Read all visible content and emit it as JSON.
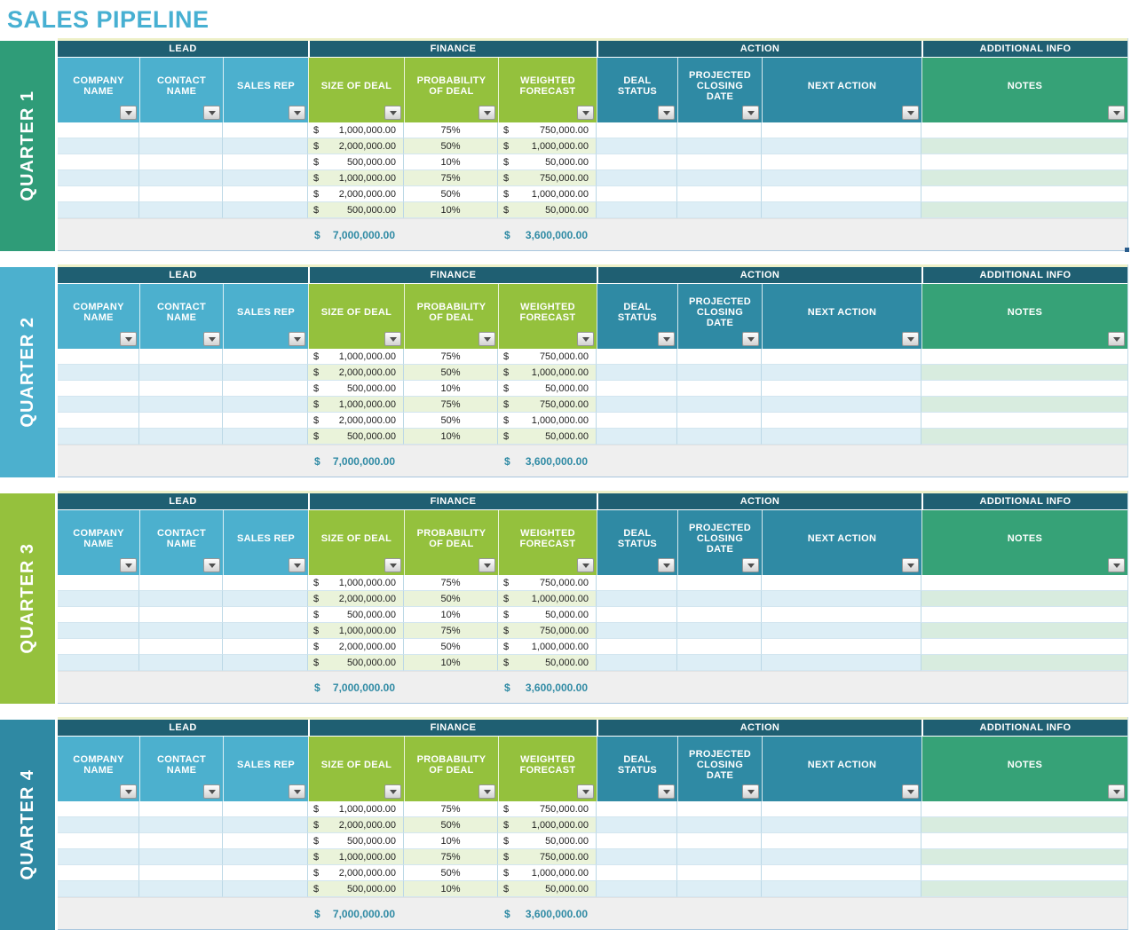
{
  "page_title": "SALES PIPELINE",
  "colors": {
    "title_text": "#47b0d2",
    "group_header_bg": "#1f5f72",
    "lead_header_bg": "#4cb0ce",
    "finance_header_bg": "#94c13d",
    "action_header_bg": "#2f8aa4",
    "notes_header_bg": "#36a277",
    "row_alt_blue": "#ddeef6",
    "row_alt_green": "#eaf3da",
    "row_alt_notes": "#d8ecdf",
    "total_row_bg": "#efefef",
    "total_text": "#2f8aa4",
    "table_top_accent": "#eef0c8",
    "data_text": "#1f1f1f",
    "quarter_sidebars": [
      "#2f9c78",
      "#4cb0ce",
      "#95c13d",
      "#2f89a3"
    ]
  },
  "quarters": [
    {
      "label": "QUARTER 1"
    },
    {
      "label": "QUARTER 2"
    },
    {
      "label": "QUARTER 3"
    },
    {
      "label": "QUARTER 4"
    }
  ],
  "groups": [
    {
      "key": "lead",
      "label": "LEAD",
      "span": 3
    },
    {
      "key": "finance",
      "label": "FINANCE",
      "span": 3
    },
    {
      "key": "action",
      "label": "ACTION",
      "span": 3
    },
    {
      "key": "additional_info",
      "label": "ADDITIONAL INFO",
      "span": 1
    }
  ],
  "columns": [
    {
      "key": "company_name",
      "label": "COMPANY NAME"
    },
    {
      "key": "contact_name",
      "label": "CONTACT NAME"
    },
    {
      "key": "sales_rep",
      "label": "SALES REP"
    },
    {
      "key": "size_of_deal",
      "label": "SIZE OF DEAL"
    },
    {
      "key": "probability",
      "label": "PROBABILITY OF DEAL"
    },
    {
      "key": "weighted_forecast",
      "label": "WEIGHTED FORECAST"
    },
    {
      "key": "deal_status",
      "label": "DEAL STATUS"
    },
    {
      "key": "projected_closing_date",
      "label": "PROJECTED CLOSING DATE"
    },
    {
      "key": "next_action",
      "label": "NEXT ACTION"
    },
    {
      "key": "notes",
      "label": "NOTES"
    }
  ],
  "rows": [
    {
      "company_name": "",
      "contact_name": "",
      "sales_rep": "",
      "currency": "$",
      "size_of_deal": "1,000,000.00",
      "probability": "75%",
      "weighted_forecast": "750,000.00",
      "deal_status": "",
      "projected_closing_date": "",
      "next_action": "",
      "notes": ""
    },
    {
      "company_name": "",
      "contact_name": "",
      "sales_rep": "",
      "currency": "$",
      "size_of_deal": "2,000,000.00",
      "probability": "50%",
      "weighted_forecast": "1,000,000.00",
      "deal_status": "",
      "projected_closing_date": "",
      "next_action": "",
      "notes": ""
    },
    {
      "company_name": "",
      "contact_name": "",
      "sales_rep": "",
      "currency": "$",
      "size_of_deal": "500,000.00",
      "probability": "10%",
      "weighted_forecast": "50,000.00",
      "deal_status": "",
      "projected_closing_date": "",
      "next_action": "",
      "notes": ""
    },
    {
      "company_name": "",
      "contact_name": "",
      "sales_rep": "",
      "currency": "$",
      "size_of_deal": "1,000,000.00",
      "probability": "75%",
      "weighted_forecast": "750,000.00",
      "deal_status": "",
      "projected_closing_date": "",
      "next_action": "",
      "notes": ""
    },
    {
      "company_name": "",
      "contact_name": "",
      "sales_rep": "",
      "currency": "$",
      "size_of_deal": "2,000,000.00",
      "probability": "50%",
      "weighted_forecast": "1,000,000.00",
      "deal_status": "",
      "projected_closing_date": "",
      "next_action": "",
      "notes": ""
    },
    {
      "company_name": "",
      "contact_name": "",
      "sales_rep": "",
      "currency": "$",
      "size_of_deal": "500,000.00",
      "probability": "10%",
      "weighted_forecast": "50,000.00",
      "deal_status": "",
      "projected_closing_date": "",
      "next_action": "",
      "notes": ""
    }
  ],
  "totals": {
    "currency": "$",
    "size_of_deal": "7,000,000.00",
    "weighted_forecast": "3,600,000.00"
  }
}
